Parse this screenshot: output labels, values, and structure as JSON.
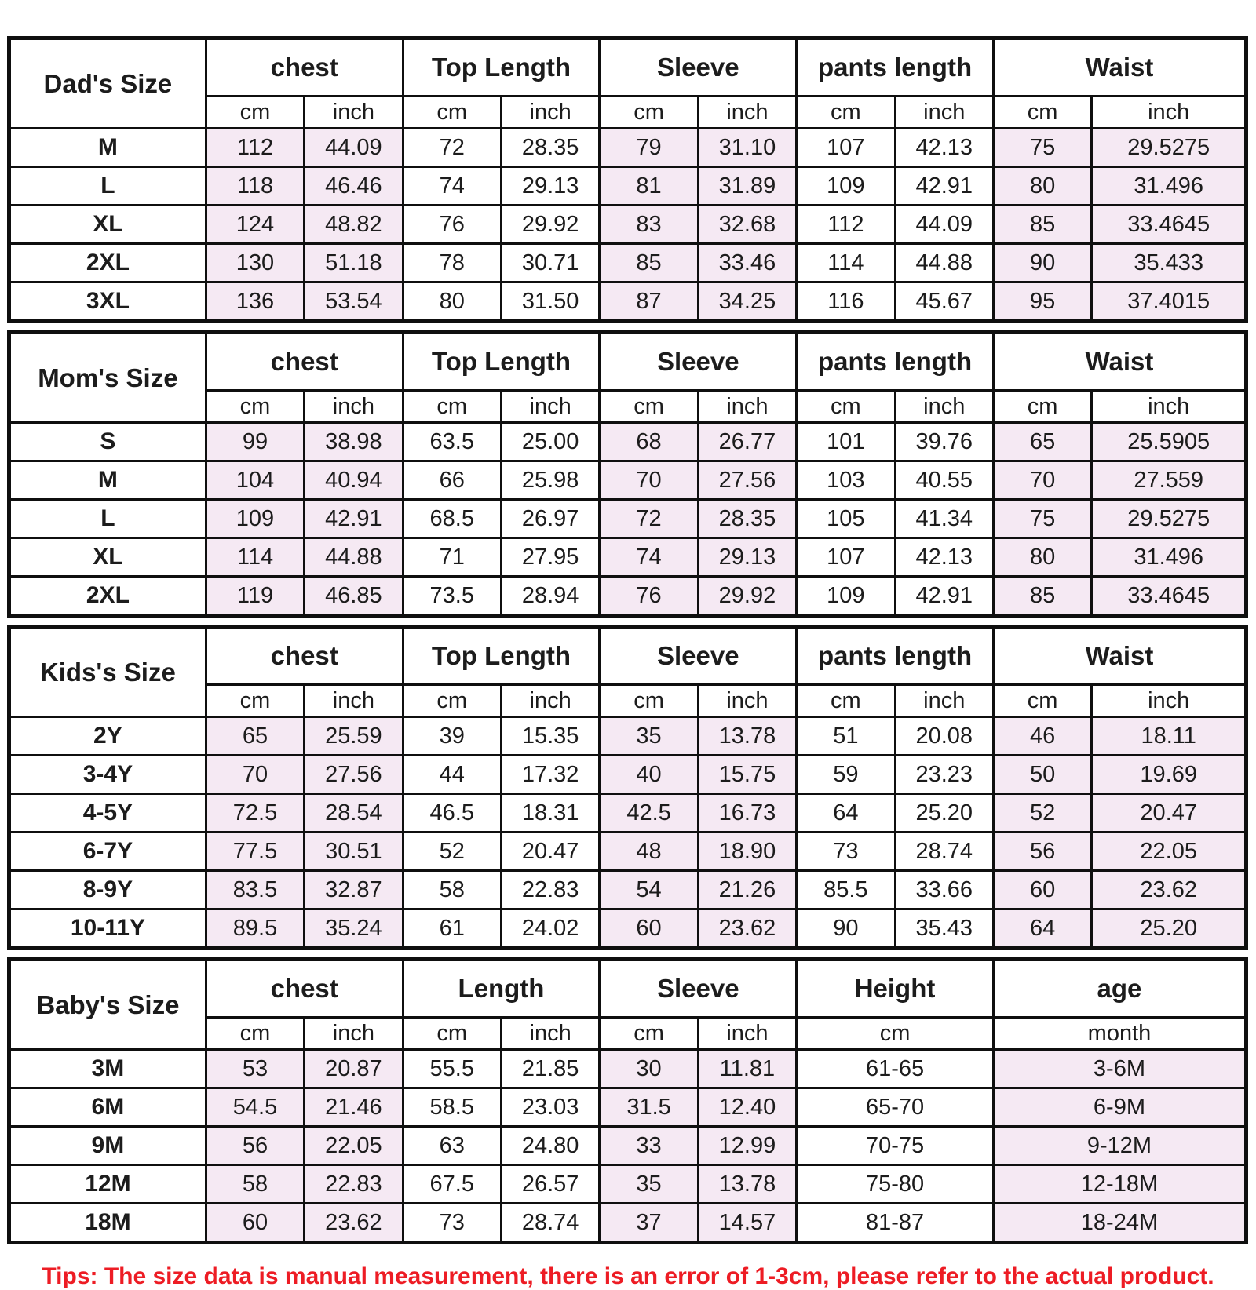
{
  "colors": {
    "shaded_cell": "#f5e9f3",
    "border": "#0f0f0f",
    "tips_text": "#ed1c24",
    "text": "#1c1c1c"
  },
  "chart_data": {
    "type": "table",
    "tables": [
      {
        "id": "dad",
        "label": "Dad's Size",
        "groups": [
          {
            "name": "chest",
            "units": [
              "cm",
              "inch"
            ],
            "shaded": true
          },
          {
            "name": "Top Length",
            "units": [
              "cm",
              "inch"
            ],
            "shaded": false
          },
          {
            "name": "Sleeve",
            "units": [
              "cm",
              "inch"
            ],
            "shaded": true
          },
          {
            "name": "pants length",
            "units": [
              "cm",
              "inch"
            ],
            "shaded": false
          },
          {
            "name": "Waist",
            "units": [
              "cm",
              "inch"
            ],
            "shaded": true
          }
        ],
        "rows": [
          {
            "size": "M",
            "cells": [
              "112",
              "44.09",
              "72",
              "28.35",
              "79",
              "31.10",
              "107",
              "42.13",
              "75",
              "29.5275"
            ]
          },
          {
            "size": "L",
            "cells": [
              "118",
              "46.46",
              "74",
              "29.13",
              "81",
              "31.89",
              "109",
              "42.91",
              "80",
              "31.496"
            ]
          },
          {
            "size": "XL",
            "cells": [
              "124",
              "48.82",
              "76",
              "29.92",
              "83",
              "32.68",
              "112",
              "44.09",
              "85",
              "33.4645"
            ]
          },
          {
            "size": "2XL",
            "cells": [
              "130",
              "51.18",
              "78",
              "30.71",
              "85",
              "33.46",
              "114",
              "44.88",
              "90",
              "35.433"
            ]
          },
          {
            "size": "3XL",
            "cells": [
              "136",
              "53.54",
              "80",
              "31.50",
              "87",
              "34.25",
              "116",
              "45.67",
              "95",
              "37.4015"
            ]
          }
        ]
      },
      {
        "id": "mom",
        "label": "Mom's Size",
        "groups": [
          {
            "name": "chest",
            "units": [
              "cm",
              "inch"
            ],
            "shaded": true
          },
          {
            "name": "Top Length",
            "units": [
              "cm",
              "inch"
            ],
            "shaded": false
          },
          {
            "name": "Sleeve",
            "units": [
              "cm",
              "inch"
            ],
            "shaded": true
          },
          {
            "name": "pants length",
            "units": [
              "cm",
              "inch"
            ],
            "shaded": false
          },
          {
            "name": "Waist",
            "units": [
              "cm",
              "inch"
            ],
            "shaded": true
          }
        ],
        "rows": [
          {
            "size": "S",
            "cells": [
              "99",
              "38.98",
              "63.5",
              "25.00",
              "68",
              "26.77",
              "101",
              "39.76",
              "65",
              "25.5905"
            ]
          },
          {
            "size": "M",
            "cells": [
              "104",
              "40.94",
              "66",
              "25.98",
              "70",
              "27.56",
              "103",
              "40.55",
              "70",
              "27.559"
            ]
          },
          {
            "size": "L",
            "cells": [
              "109",
              "42.91",
              "68.5",
              "26.97",
              "72",
              "28.35",
              "105",
              "41.34",
              "75",
              "29.5275"
            ]
          },
          {
            "size": "XL",
            "cells": [
              "114",
              "44.88",
              "71",
              "27.95",
              "74",
              "29.13",
              "107",
              "42.13",
              "80",
              "31.496"
            ]
          },
          {
            "size": "2XL",
            "cells": [
              "119",
              "46.85",
              "73.5",
              "28.94",
              "76",
              "29.92",
              "109",
              "42.91",
              "85",
              "33.4645"
            ]
          }
        ]
      },
      {
        "id": "kids",
        "label": "Kids's Size",
        "groups": [
          {
            "name": "chest",
            "units": [
              "cm",
              "inch"
            ],
            "shaded": true
          },
          {
            "name": "Top Length",
            "units": [
              "cm",
              "inch"
            ],
            "shaded": false
          },
          {
            "name": "Sleeve",
            "units": [
              "cm",
              "inch"
            ],
            "shaded": true
          },
          {
            "name": "pants length",
            "units": [
              "cm",
              "inch"
            ],
            "shaded": false
          },
          {
            "name": "Waist",
            "units": [
              "cm",
              "inch"
            ],
            "shaded": true
          }
        ],
        "rows": [
          {
            "size": "2Y",
            "cells": [
              "65",
              "25.59",
              "39",
              "15.35",
              "35",
              "13.78",
              "51",
              "20.08",
              "46",
              "18.11"
            ]
          },
          {
            "size": "3-4Y",
            "cells": [
              "70",
              "27.56",
              "44",
              "17.32",
              "40",
              "15.75",
              "59",
              "23.23",
              "50",
              "19.69"
            ]
          },
          {
            "size": "4-5Y",
            "cells": [
              "72.5",
              "28.54",
              "46.5",
              "18.31",
              "42.5",
              "16.73",
              "64",
              "25.20",
              "52",
              "20.47"
            ]
          },
          {
            "size": "6-7Y",
            "cells": [
              "77.5",
              "30.51",
              "52",
              "20.47",
              "48",
              "18.90",
              "73",
              "28.74",
              "56",
              "22.05"
            ]
          },
          {
            "size": "8-9Y",
            "cells": [
              "83.5",
              "32.87",
              "58",
              "22.83",
              "54",
              "21.26",
              "85.5",
              "33.66",
              "60",
              "23.62"
            ]
          },
          {
            "size": "10-11Y",
            "cells": [
              "89.5",
              "35.24",
              "61",
              "24.02",
              "60",
              "23.62",
              "90",
              "35.43",
              "64",
              "25.20"
            ]
          }
        ]
      },
      {
        "id": "baby",
        "label": "Baby's Size",
        "groups": [
          {
            "name": "chest",
            "units": [
              "cm",
              "inch"
            ],
            "shaded": true
          },
          {
            "name": "Length",
            "units": [
              "cm",
              "inch"
            ],
            "shaded": false
          },
          {
            "name": "Sleeve",
            "units": [
              "cm",
              "inch"
            ],
            "shaded": true
          },
          {
            "name": "Height",
            "units": [
              "cm"
            ],
            "shaded": false
          },
          {
            "name": "age",
            "units": [
              "month"
            ],
            "shaded": true
          }
        ],
        "rows": [
          {
            "size": "3M",
            "cells": [
              "53",
              "20.87",
              "55.5",
              "21.85",
              "30",
              "11.81",
              "61-65",
              "3-6M"
            ]
          },
          {
            "size": "6M",
            "cells": [
              "54.5",
              "21.46",
              "58.5",
              "23.03",
              "31.5",
              "12.40",
              "65-70",
              "6-9M"
            ]
          },
          {
            "size": "9M",
            "cells": [
              "56",
              "22.05",
              "63",
              "24.80",
              "33",
              "12.99",
              "70-75",
              "9-12M"
            ]
          },
          {
            "size": "12M",
            "cells": [
              "58",
              "22.83",
              "67.5",
              "26.57",
              "35",
              "13.78",
              "75-80",
              "12-18M"
            ]
          },
          {
            "size": "18M",
            "cells": [
              "60",
              "23.62",
              "73",
              "28.74",
              "37",
              "14.57",
              "81-87",
              "18-24M"
            ]
          }
        ]
      }
    ],
    "footer_tips": "Tips: The size data is manual measurement, there is an error of 1-3cm, please refer to the actual product."
  }
}
